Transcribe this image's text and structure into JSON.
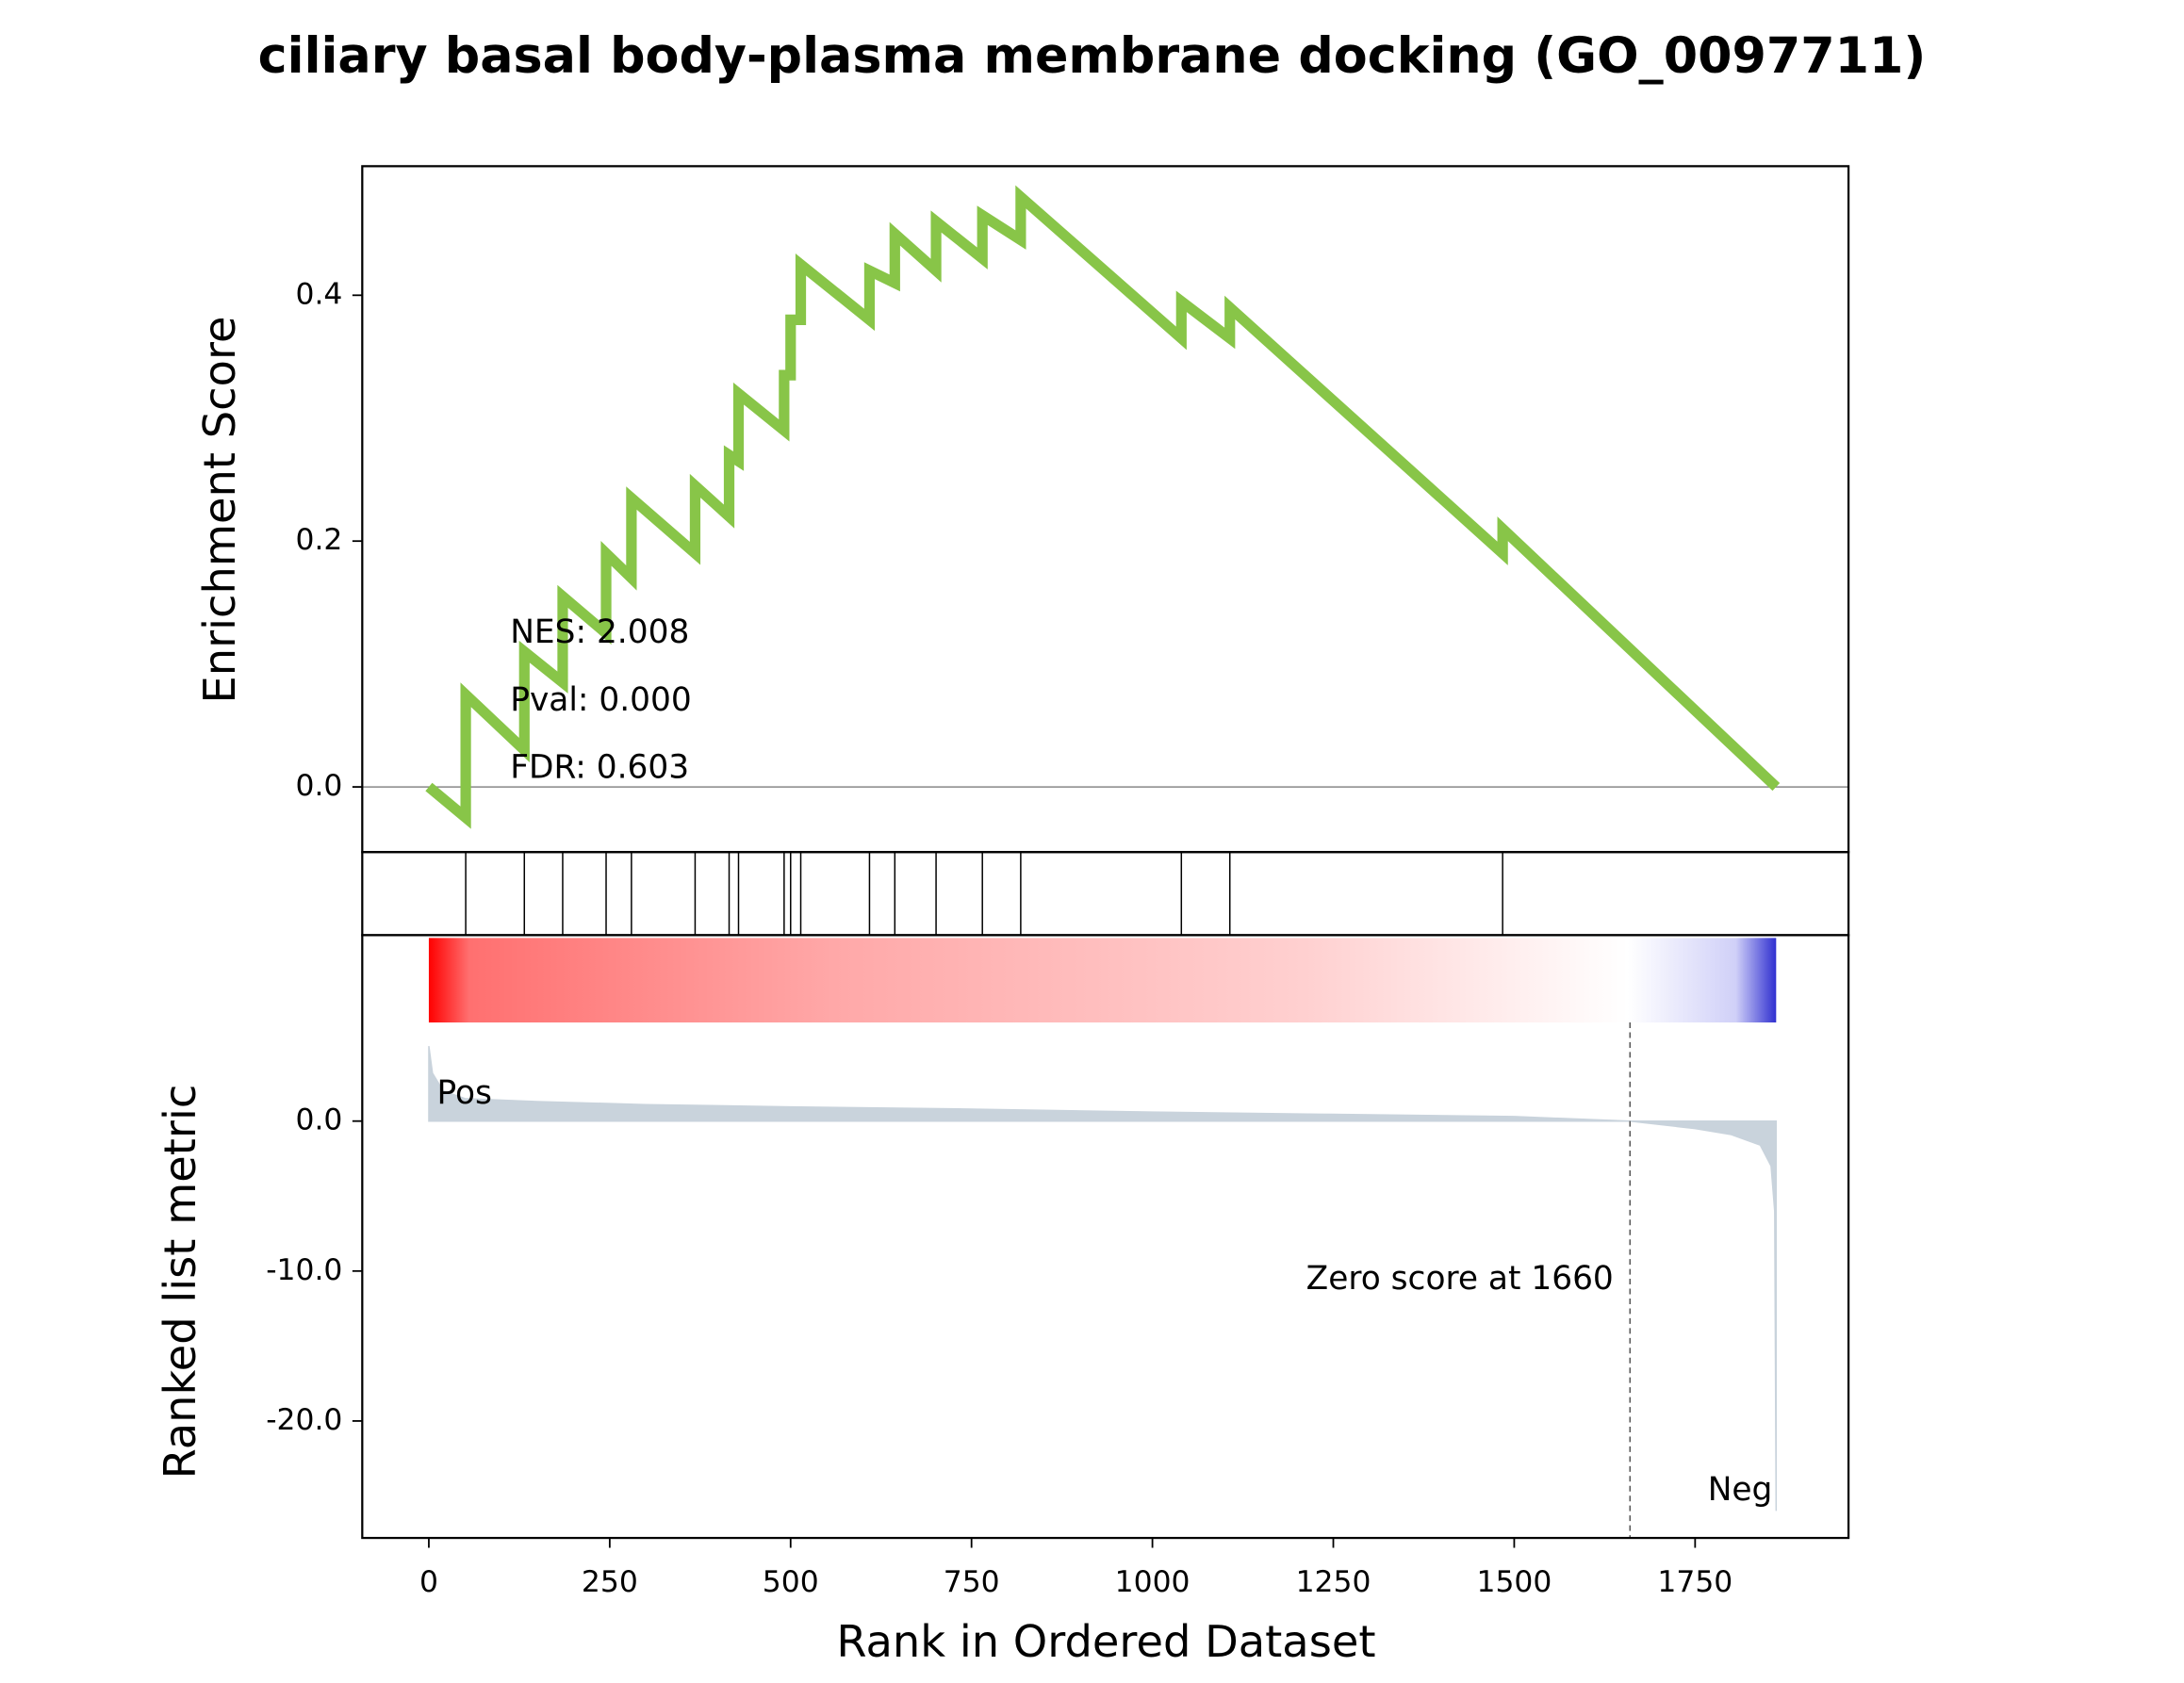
{
  "chart_data": [
    {
      "type": "line",
      "title": "ciliary basal body-plasma membrane docking (GO_0097711)",
      "y_label": "Enrichment Score",
      "annotations": [
        "NES: 2.008",
        "Pval: 0.000",
        "FDR: 0.603"
      ],
      "color": "#88c548",
      "xlim": [
        -92,
        1962
      ],
      "ylim": [
        -0.053,
        0.505
      ],
      "yticks": [
        {
          "value": 0,
          "label": "0.0"
        },
        {
          "value": 0.2,
          "label": "0.2"
        },
        {
          "value": 0.4,
          "label": "0.4"
        }
      ],
      "x": [
        0,
        51,
        51,
        132,
        132,
        185,
        185,
        245,
        245,
        280,
        280,
        368,
        368,
        415,
        415,
        428,
        428,
        491,
        491,
        500,
        500,
        514,
        514,
        609,
        609,
        644,
        644,
        701,
        701,
        765,
        765,
        818,
        818,
        1040,
        1040,
        1107,
        1107,
        1484,
        1484,
        1862
      ],
      "values": [
        0,
        -0.025,
        0.075,
        0.03,
        0.11,
        0.085,
        0.155,
        0.125,
        0.19,
        0.17,
        0.235,
        0.19,
        0.245,
        0.22,
        0.27,
        0.265,
        0.32,
        0.29,
        0.335,
        0.335,
        0.38,
        0.38,
        0.425,
        0.38,
        0.42,
        0.41,
        0.45,
        0.42,
        0.46,
        0.43,
        0.465,
        0.445,
        0.48,
        0.365,
        0.395,
        0.365,
        0.39,
        0.19,
        0.21,
        0
      ]
    },
    {
      "type": "rug",
      "xlim": [
        -92,
        1962
      ],
      "hits": [
        51,
        132,
        185,
        245,
        280,
        368,
        415,
        428,
        491,
        500,
        514,
        609,
        644,
        701,
        765,
        818,
        1040,
        1107,
        1484
      ]
    },
    {
      "type": "area",
      "y_label": "Ranked list metric",
      "x_label": "Rank in Ordered Dataset",
      "color": "#c9d3dc",
      "pos_label": "Pos",
      "neg_label": "Neg",
      "zero_score_label": "Zero score at 1660",
      "zero_score_rank": 1660,
      "xlim": [
        -92,
        1962
      ],
      "ylim": [
        -27.8,
        12.4
      ],
      "xticks": [
        0,
        250,
        500,
        750,
        1000,
        1250,
        1500,
        1750
      ],
      "yticks": [
        {
          "value": 0,
          "label": "0.0"
        },
        {
          "value": -10,
          "label": "-10.0"
        },
        {
          "value": -20,
          "label": "-20.0"
        }
      ],
      "x": [
        0,
        5,
        20,
        50,
        150,
        300,
        500,
        750,
        1000,
        1250,
        1500,
        1660,
        1750,
        1800,
        1840,
        1855,
        1860,
        1862
      ],
      "values": [
        5,
        3.2,
        2,
        1.5,
        1.3,
        1.1,
        0.95,
        0.8,
        0.6,
        0.45,
        0.3,
        0,
        -0.5,
        -0.9,
        -1.6,
        -3,
        -6,
        -26
      ]
    }
  ]
}
